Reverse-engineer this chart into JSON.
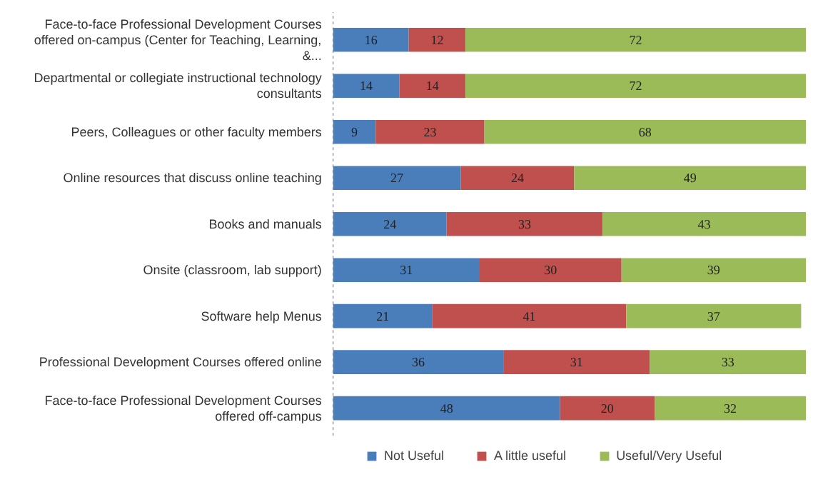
{
  "chart_data": {
    "type": "bar",
    "orientation": "horizontal",
    "stacked": true,
    "data_labels": true,
    "legend": "bottom",
    "grid": false,
    "tick_labels": "y",
    "xlim": [
      0,
      100
    ],
    "categories": [
      "Face-to-face Professional Development Courses offered on-campus (Center for Teaching, Learning, &...",
      "Departmental or collegiate instructional technology consultants",
      "Peers, Colleagues or other faculty members",
      "Online resources that discuss online teaching",
      "Books and manuals",
      "Onsite (classroom, lab support)",
      "Software help Menus",
      "Professional Development Courses offered online",
      "Face-to-face Professional Development Courses offered off-campus"
    ],
    "series": [
      {
        "name": "Not Useful",
        "color": "#4a7ebb",
        "values": [
          16,
          14,
          9,
          27,
          24,
          31,
          21,
          36,
          48
        ]
      },
      {
        "name": "A little useful",
        "color": "#c0504d",
        "values": [
          12,
          14,
          23,
          24,
          33,
          30,
          41,
          31,
          20
        ]
      },
      {
        "name": "Useful/Very Useful",
        "color": "#9bbb59",
        "values": [
          72,
          72,
          68,
          49,
          43,
          39,
          37,
          33,
          32
        ]
      }
    ]
  }
}
